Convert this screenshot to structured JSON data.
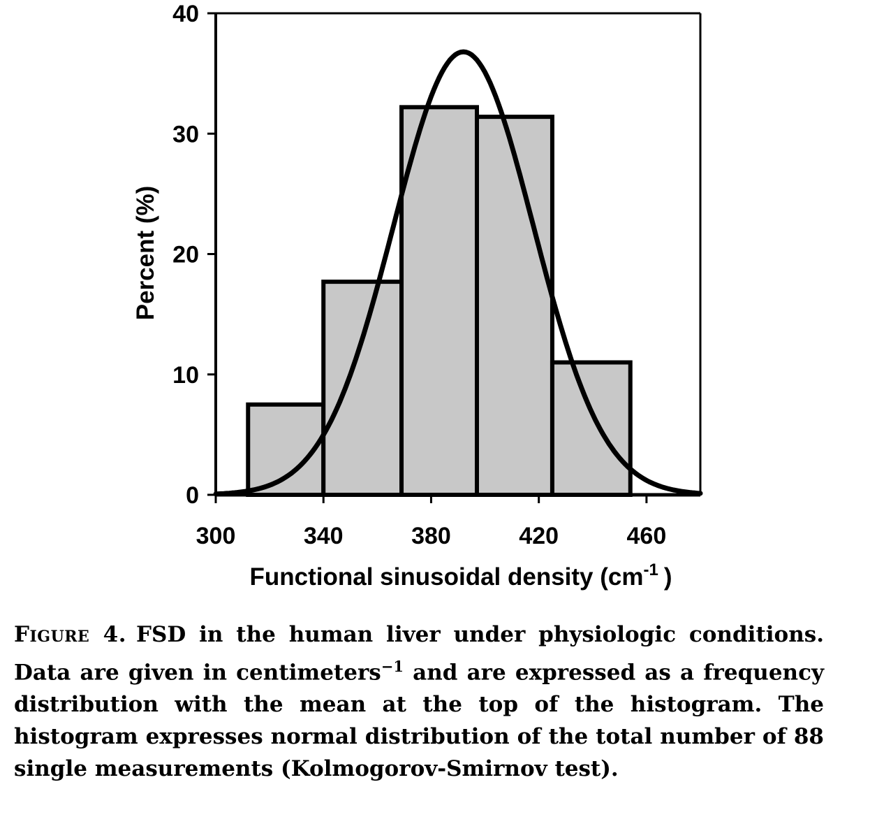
{
  "chart_data": {
    "type": "bar",
    "subtype": "histogram-with-normal-curve",
    "bins": [
      {
        "from": 312,
        "to": 340,
        "value": 7.5
      },
      {
        "from": 340,
        "to": 369,
        "value": 17.7
      },
      {
        "from": 369,
        "to": 397,
        "value": 32.2
      },
      {
        "from": 397,
        "to": 425,
        "value": 31.4
      },
      {
        "from": 425,
        "to": 454,
        "value": 11.0
      }
    ],
    "curve": {
      "type": "normal",
      "mean": 392,
      "sd": 26,
      "peak": 36.8
    },
    "xlabel": "Functional sinusoidal density (cm",
    "xlabel_sup": "-1",
    "xlabel_close": ")",
    "ylabel": "Percent (%)",
    "xlim": [
      300,
      480
    ],
    "ylim": [
      0,
      40
    ],
    "xticks": [
      300,
      340,
      380,
      420,
      460
    ],
    "yticks": [
      0,
      10,
      20,
      30,
      40
    ],
    "grid": false,
    "bar_color": "#c8c8c8"
  },
  "caption": {
    "label": "Figure 4.",
    "text_before_sup": "FSD in the human liver under physiologic conditions. Data are given in centimeters",
    "sup": "−1",
    "text_after_sup": " and are expressed as a frequency distribution with the mean at the top of the histogram. The histogram expresses normal distribution of the total number of 88 single measurements (Kolmogorov-Smirnov test)."
  }
}
